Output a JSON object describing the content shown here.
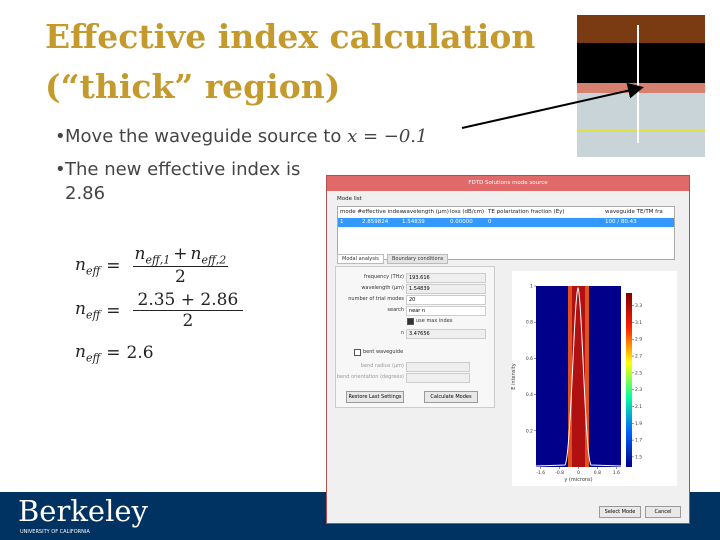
{
  "slide": {
    "title_lines": [
      "Effective index calculation",
      "(“thick” region)"
    ],
    "bullets": [
      {
        "text": "Move the waveguide source to",
        "math": "x = −0.1"
      },
      {
        "text": "The new effective index is 2.86"
      }
    ],
    "equations": [
      {
        "lhs": {
          "base": "n",
          "sub": "eff"
        },
        "eq": "=",
        "numerator": [
          {
            "base": "n",
            "sub": "eff,1"
          },
          "+",
          {
            "base": "n",
            "sub": "eff,2"
          }
        ],
        "denominator": "2"
      },
      {
        "lhs": {
          "base": "n",
          "sub": "eff"
        },
        "eq": "=",
        "numerator": [
          "2.35 + 2.86"
        ],
        "denominator": "2"
      },
      {
        "lhs": {
          "base": "n",
          "sub": "eff"
        },
        "eq": "=",
        "result": "2.6"
      }
    ],
    "footer": {
      "logo": "Berkeley",
      "tagline": "UNIVERSITY OF CALIFORNIA"
    }
  },
  "dialog": {
    "title": "FDTD Solutions mode source",
    "mode_list_label": "Mode list",
    "columns": [
      "mode #",
      "effective index",
      "wavelength (µm)",
      "loss (dB/cm)",
      "TE polarization fraction (Ey)",
      "waveguide TE/TM fra"
    ],
    "rows": [
      [
        "1",
        "2.859824",
        "1.54839",
        "0.00000",
        "0",
        "100 / 80.43"
      ]
    ],
    "tabs": [
      "Modal analysis",
      "Boundary conditions"
    ],
    "fields": [
      {
        "label": "frequency (THz)",
        "value": "193.616"
      },
      {
        "label": "wavelength (µm)",
        "value": "1.54839"
      },
      {
        "label": "number of trial modes",
        "value": "20"
      },
      {
        "label": "search",
        "value": "near n"
      }
    ],
    "use_max_index": "use max index",
    "n_field": {
      "label": "n",
      "value": "3.47656"
    },
    "bent": {
      "label": "bent waveguide",
      "fields": [
        "bend radius (µm)",
        "bend orientation (degrees)"
      ]
    },
    "buttons": [
      "Restore Last Settings",
      "Calculate Modes"
    ],
    "bottom_buttons": [
      "Select Mode",
      "Cancel"
    ],
    "plot": {
      "ylabel": "E intensity",
      "xlabel": "y (microns)",
      "ylim": [
        0,
        1
      ],
      "yticks": [
        1,
        0.8,
        0.6,
        0.4,
        0.2
      ],
      "xlim": [
        -1.8,
        1.8
      ],
      "xticks": [
        -1.6,
        -0.8,
        0,
        0.8,
        1.6
      ],
      "clim": [
        1.38,
        3.45
      ],
      "cticks": [
        3.3,
        3.1,
        2.9,
        2.7,
        2.5,
        2.3,
        2.1,
        1.9,
        1.7,
        1.5
      ]
    }
  }
}
